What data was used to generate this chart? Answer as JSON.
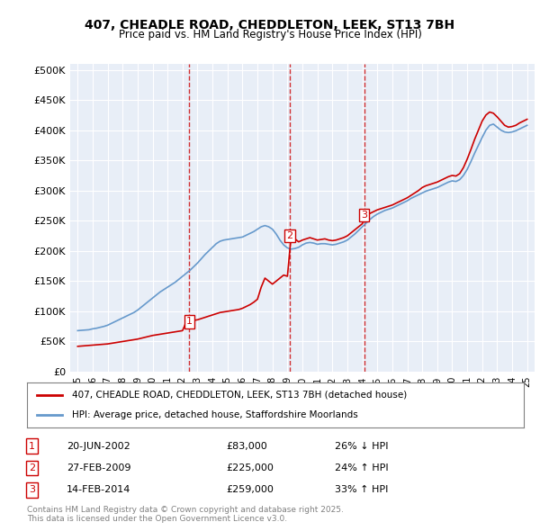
{
  "title1": "407, CHEADLE ROAD, CHEDDLETON, LEEK, ST13 7BH",
  "title2": "Price paid vs. HM Land Registry's House Price Index (HPI)",
  "ylabel_ticks": [
    "£0",
    "£50K",
    "£100K",
    "£150K",
    "£200K",
    "£250K",
    "£300K",
    "£350K",
    "£400K",
    "£450K",
    "£500K"
  ],
  "ytick_values": [
    0,
    50000,
    100000,
    150000,
    200000,
    250000,
    300000,
    350000,
    400000,
    450000,
    500000
  ],
  "xlim": [
    1994.5,
    2025.5
  ],
  "ylim": [
    0,
    510000
  ],
  "legend_line1": "407, CHEADLE ROAD, CHEDDLETON, LEEK, ST13 7BH (detached house)",
  "legend_line2": "HPI: Average price, detached house, Staffordshire Moorlands",
  "transactions": [
    {
      "num": 1,
      "date": "20-JUN-2002",
      "price": 83000,
      "year": 2002.46,
      "pct": "26%",
      "dir": "↓"
    },
    {
      "num": 2,
      "date": "27-FEB-2009",
      "price": 225000,
      "year": 2009.15,
      "pct": "24%",
      "dir": "↑"
    },
    {
      "num": 3,
      "date": "14-FEB-2014",
      "price": 259000,
      "year": 2014.12,
      "pct": "33%",
      "dir": "↑"
    }
  ],
  "footnote1": "Contains HM Land Registry data © Crown copyright and database right 2025.",
  "footnote2": "This data is licensed under the Open Government Licence v3.0.",
  "color_red": "#cc0000",
  "color_blue": "#6699cc",
  "color_dashed": "#cc0000",
  "bg_plot": "#e8eef7",
  "bg_fig": "#ffffff",
  "grid_color": "#ffffff",
  "hpi_data_x": [
    1995.0,
    1995.25,
    1995.5,
    1995.75,
    1996.0,
    1996.25,
    1996.5,
    1996.75,
    1997.0,
    1997.25,
    1997.5,
    1997.75,
    1998.0,
    1998.25,
    1998.5,
    1998.75,
    1999.0,
    1999.25,
    1999.5,
    1999.75,
    2000.0,
    2000.25,
    2000.5,
    2000.75,
    2001.0,
    2001.25,
    2001.5,
    2001.75,
    2002.0,
    2002.25,
    2002.5,
    2002.75,
    2003.0,
    2003.25,
    2003.5,
    2003.75,
    2004.0,
    2004.25,
    2004.5,
    2004.75,
    2005.0,
    2005.25,
    2005.5,
    2005.75,
    2006.0,
    2006.25,
    2006.5,
    2006.75,
    2007.0,
    2007.25,
    2007.5,
    2007.75,
    2008.0,
    2008.25,
    2008.5,
    2008.75,
    2009.0,
    2009.25,
    2009.5,
    2009.75,
    2010.0,
    2010.25,
    2010.5,
    2010.75,
    2011.0,
    2011.25,
    2011.5,
    2011.75,
    2012.0,
    2012.25,
    2012.5,
    2012.75,
    2013.0,
    2013.25,
    2013.5,
    2013.75,
    2014.0,
    2014.25,
    2014.5,
    2014.75,
    2015.0,
    2015.25,
    2015.5,
    2015.75,
    2016.0,
    2016.25,
    2016.5,
    2016.75,
    2017.0,
    2017.25,
    2017.5,
    2017.75,
    2018.0,
    2018.25,
    2018.5,
    2018.75,
    2019.0,
    2019.25,
    2019.5,
    2019.75,
    2020.0,
    2020.25,
    2020.5,
    2020.75,
    2021.0,
    2021.25,
    2021.5,
    2021.75,
    2022.0,
    2022.25,
    2022.5,
    2022.75,
    2023.0,
    2023.25,
    2023.5,
    2023.75,
    2024.0,
    2024.25,
    2024.5,
    2024.75,
    2025.0
  ],
  "hpi_data_y": [
    68000,
    68500,
    69000,
    69500,
    71000,
    72000,
    73500,
    75000,
    77000,
    80000,
    83000,
    86000,
    89000,
    92000,
    95000,
    98000,
    102000,
    107000,
    112000,
    117000,
    122000,
    127000,
    132000,
    136000,
    140000,
    144000,
    148000,
    153000,
    158000,
    163000,
    168000,
    174000,
    180000,
    187000,
    194000,
    200000,
    206000,
    212000,
    216000,
    218000,
    219000,
    220000,
    221000,
    222000,
    223000,
    226000,
    229000,
    232000,
    236000,
    240000,
    242000,
    240000,
    236000,
    228000,
    218000,
    210000,
    205000,
    203000,
    204000,
    206000,
    210000,
    213000,
    214000,
    213000,
    211000,
    212000,
    212000,
    211000,
    210000,
    211000,
    213000,
    215000,
    218000,
    223000,
    228000,
    234000,
    240000,
    246000,
    252000,
    257000,
    261000,
    264000,
    267000,
    269000,
    271000,
    274000,
    277000,
    280000,
    283000,
    287000,
    290000,
    293000,
    296000,
    299000,
    301000,
    303000,
    305000,
    308000,
    311000,
    314000,
    316000,
    315000,
    318000,
    325000,
    335000,
    348000,
    362000,
    375000,
    388000,
    400000,
    408000,
    410000,
    405000,
    400000,
    397000,
    396000,
    397000,
    399000,
    402000,
    405000,
    408000
  ],
  "price_data_x": [
    1995.0,
    1995.25,
    1995.5,
    1995.75,
    1996.0,
    1996.25,
    1996.5,
    1996.75,
    1997.0,
    1997.25,
    1997.5,
    1997.75,
    1998.0,
    1998.25,
    1998.5,
    1998.75,
    1999.0,
    1999.25,
    1999.5,
    1999.75,
    2000.0,
    2000.25,
    2000.5,
    2000.75,
    2001.0,
    2001.25,
    2001.5,
    2001.75,
    2002.0,
    2002.25,
    2002.5,
    2002.75,
    2003.0,
    2003.25,
    2003.5,
    2003.75,
    2004.0,
    2004.25,
    2004.5,
    2004.75,
    2005.0,
    2005.25,
    2005.5,
    2005.75,
    2006.0,
    2006.25,
    2006.5,
    2006.75,
    2007.0,
    2007.25,
    2007.5,
    2007.75,
    2008.0,
    2008.25,
    2008.5,
    2008.75,
    2009.0,
    2009.25,
    2009.5,
    2009.75,
    2010.0,
    2010.25,
    2010.5,
    2010.75,
    2011.0,
    2011.25,
    2011.5,
    2011.75,
    2012.0,
    2012.25,
    2012.5,
    2012.75,
    2013.0,
    2013.25,
    2013.5,
    2013.75,
    2014.0,
    2014.25,
    2014.5,
    2014.75,
    2015.0,
    2015.25,
    2015.5,
    2015.75,
    2016.0,
    2016.25,
    2016.5,
    2016.75,
    2017.0,
    2017.25,
    2017.5,
    2017.75,
    2018.0,
    2018.25,
    2018.5,
    2018.75,
    2019.0,
    2019.25,
    2019.5,
    2019.75,
    2020.0,
    2020.25,
    2020.5,
    2020.75,
    2021.0,
    2021.25,
    2021.5,
    2021.75,
    2022.0,
    2022.25,
    2022.5,
    2022.75,
    2023.0,
    2023.25,
    2023.5,
    2023.75,
    2024.0,
    2024.25,
    2024.5,
    2024.75,
    2025.0
  ],
  "price_data_y": [
    42000,
    42500,
    43000,
    43500,
    44000,
    44500,
    45000,
    45500,
    46000,
    47000,
    48000,
    49000,
    50000,
    51000,
    52000,
    53000,
    54000,
    55500,
    57000,
    58500,
    60000,
    61000,
    62000,
    63000,
    64000,
    65000,
    66000,
    67000,
    68000,
    83000,
    84000,
    85000,
    86000,
    88000,
    90000,
    92000,
    94000,
    96000,
    98000,
    99000,
    100000,
    101000,
    102000,
    103000,
    105000,
    108000,
    111000,
    115000,
    120000,
    140000,
    155000,
    150000,
    145000,
    150000,
    155000,
    160000,
    158000,
    225000,
    220000,
    215000,
    218000,
    220000,
    222000,
    220000,
    218000,
    219000,
    220000,
    218000,
    217000,
    218000,
    220000,
    222000,
    225000,
    230000,
    235000,
    240000,
    245000,
    259000,
    262000,
    265000,
    268000,
    270000,
    272000,
    274000,
    276000,
    279000,
    282000,
    285000,
    288000,
    292000,
    296000,
    300000,
    305000,
    308000,
    310000,
    312000,
    314000,
    317000,
    320000,
    323000,
    325000,
    324000,
    328000,
    338000,
    352000,
    368000,
    385000,
    400000,
    415000,
    425000,
    430000,
    428000,
    422000,
    415000,
    408000,
    405000,
    406000,
    408000,
    412000,
    415000,
    418000
  ]
}
